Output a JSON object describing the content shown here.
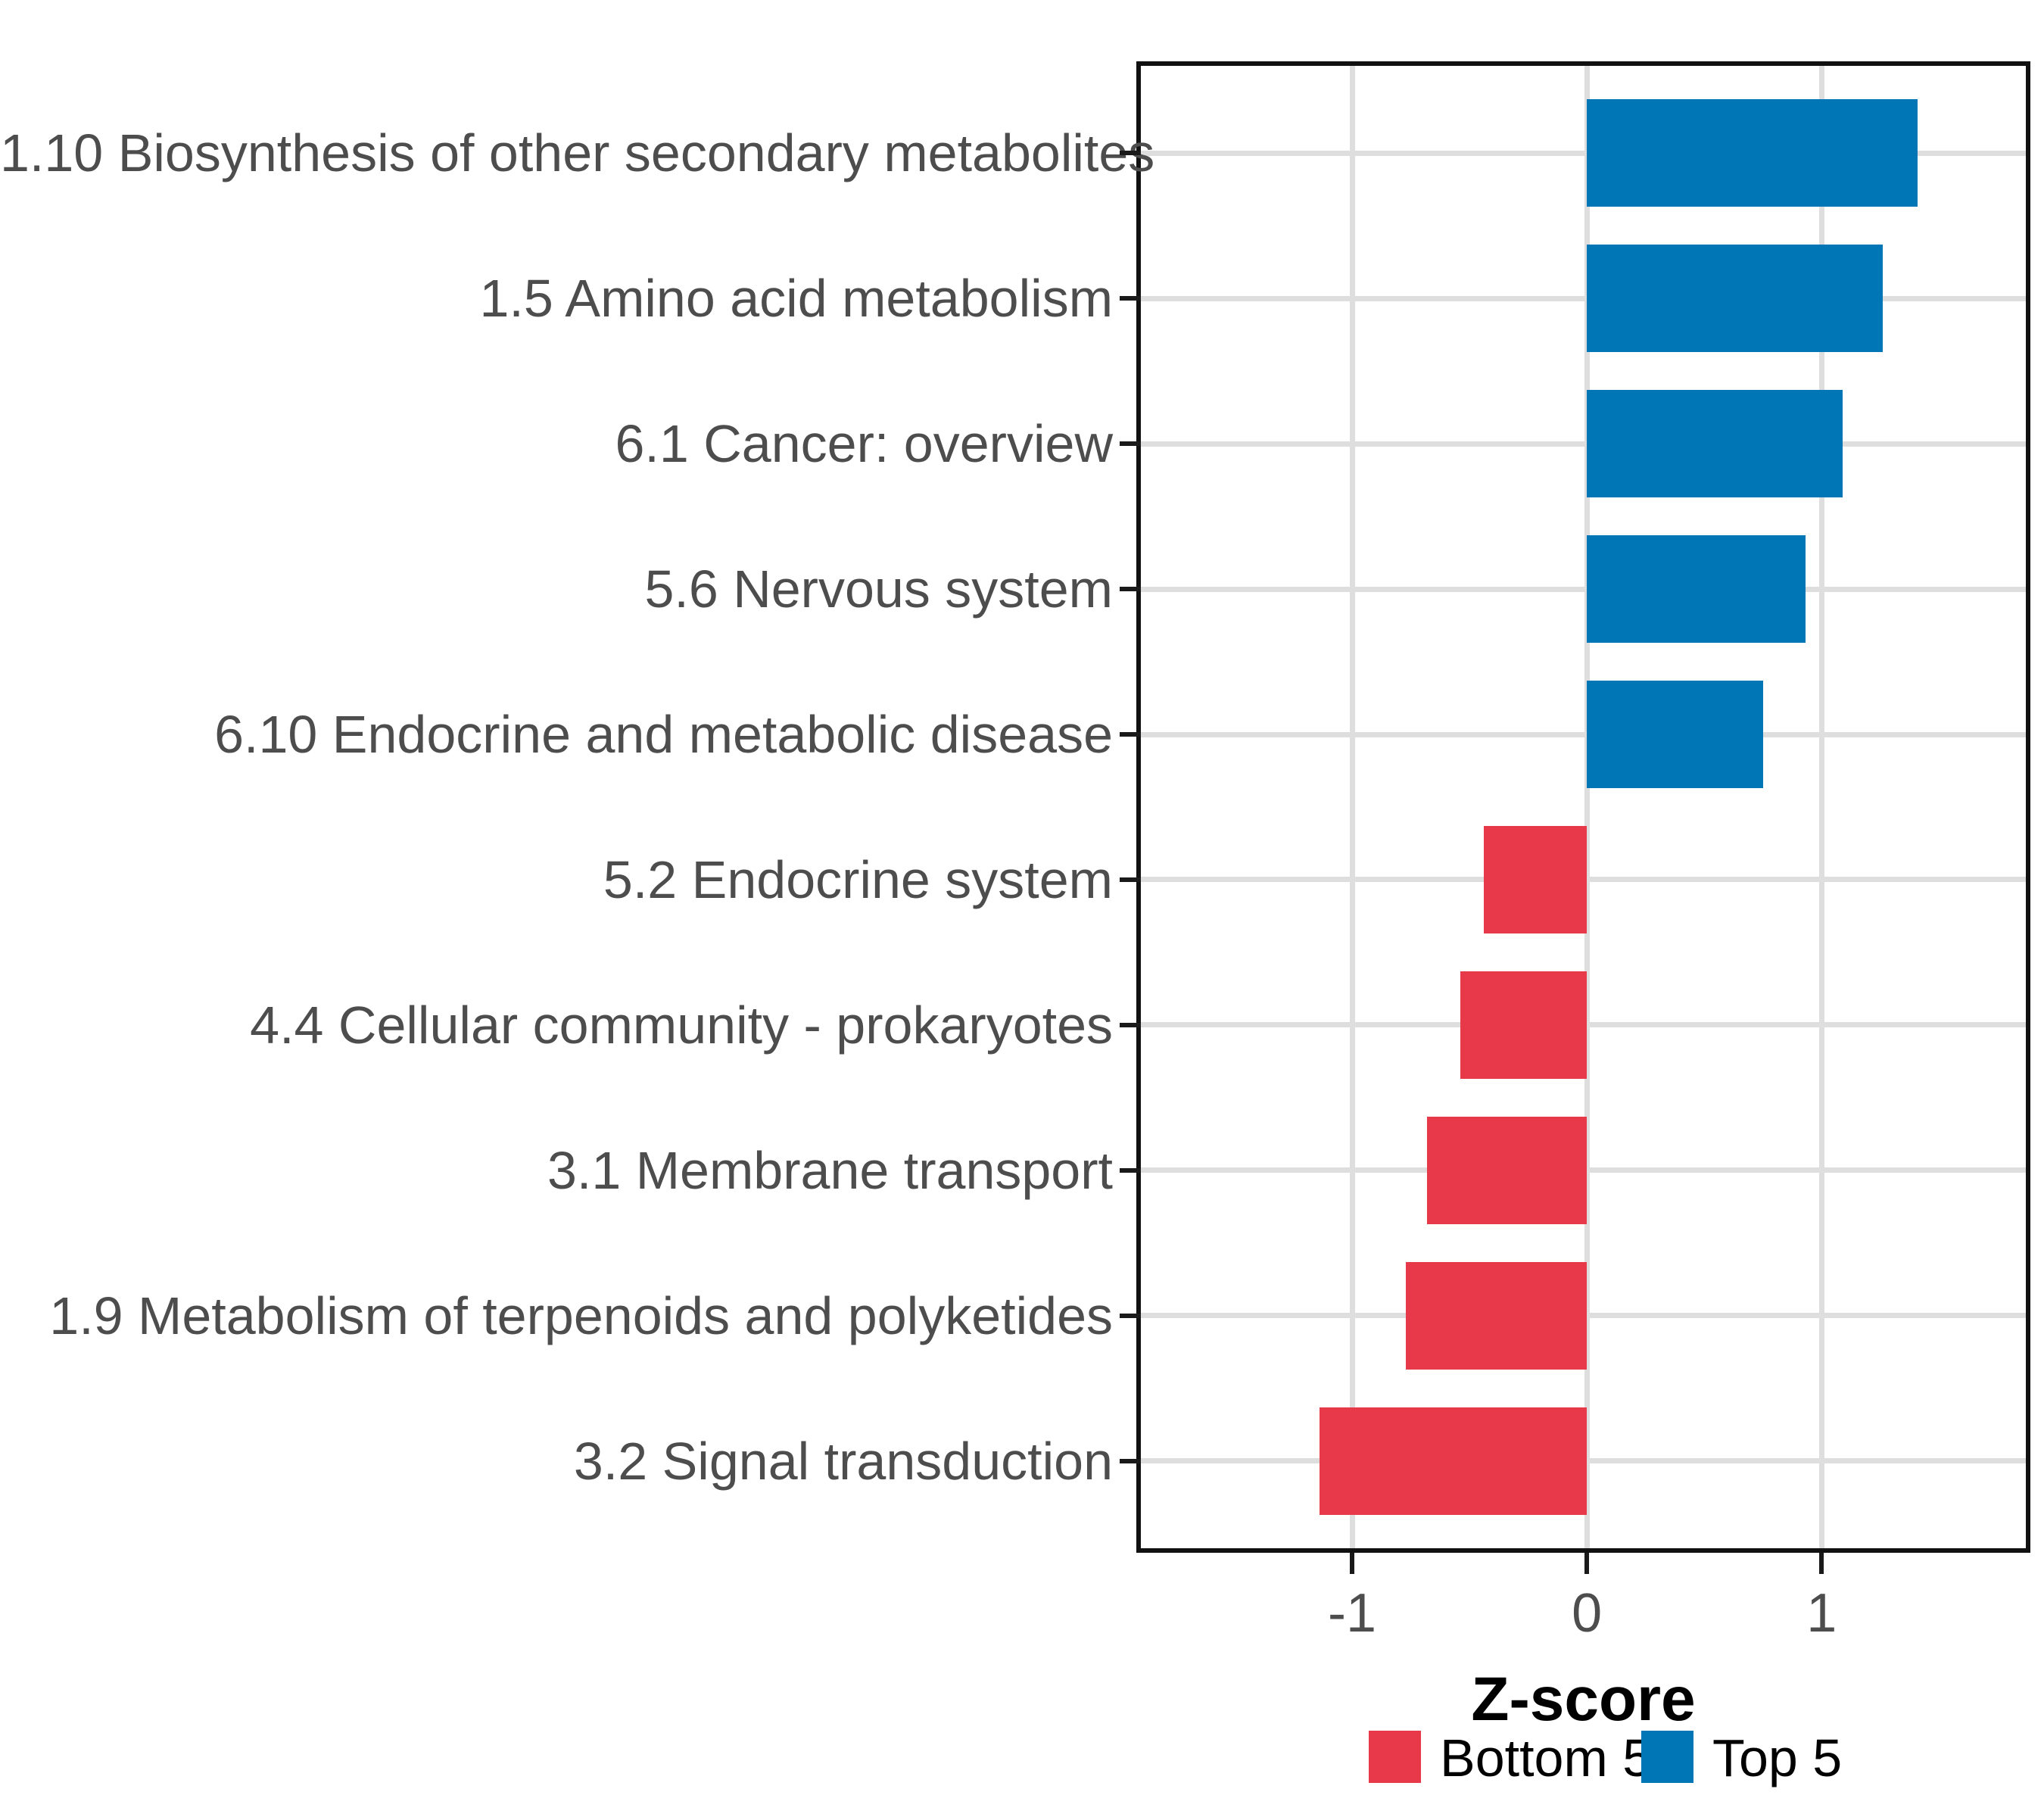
{
  "chart_data": {
    "type": "bar",
    "orientation": "horizontal",
    "title": "",
    "xlabel": "Z-score",
    "ylabel": "",
    "categories": [
      "1.10 Biosynthesis of other secondary metabolites",
      "1.5 Amino acid metabolism",
      "6.1 Cancer: overview",
      "5.6 Nervous system",
      "6.10 Endocrine and metabolic disease",
      "5.2 Endocrine system",
      "4.4 Cellular community - prokaryotes",
      "3.1 Membrane transport",
      "1.9 Metabolism of terpenoids and polyketides",
      "3.2 Signal transduction"
    ],
    "values": [
      1.41,
      1.26,
      1.09,
      0.93,
      0.75,
      -0.44,
      -0.54,
      -0.68,
      -0.77,
      -1.14
    ],
    "groups": [
      "Top 5",
      "Top 5",
      "Top 5",
      "Top 5",
      "Top 5",
      "Bottom 5",
      "Bottom 5",
      "Bottom 5",
      "Bottom 5",
      "Bottom 5"
    ],
    "group_colors": {
      "Top 5": "#0076B6",
      "Bottom 5": "#E8394A"
    },
    "x_ticks": [
      -1,
      0,
      1
    ],
    "x_tick_labels": [
      "-1",
      "0",
      "1"
    ],
    "xlim": [
      -1.9,
      1.87
    ],
    "grid": "major",
    "legend": {
      "position": "bottom",
      "entries": [
        {
          "label": "Bottom 5",
          "color": "#E8394A"
        },
        {
          "label": "Top 5",
          "color": "#0076B6"
        }
      ]
    },
    "styles": {
      "grid_color": "#DEDEDE",
      "panel_border_color": "#111111",
      "axis_text_color": "#4D4D4D",
      "tick_color": "#1A1A1A",
      "background": "#FFFFFF"
    }
  }
}
